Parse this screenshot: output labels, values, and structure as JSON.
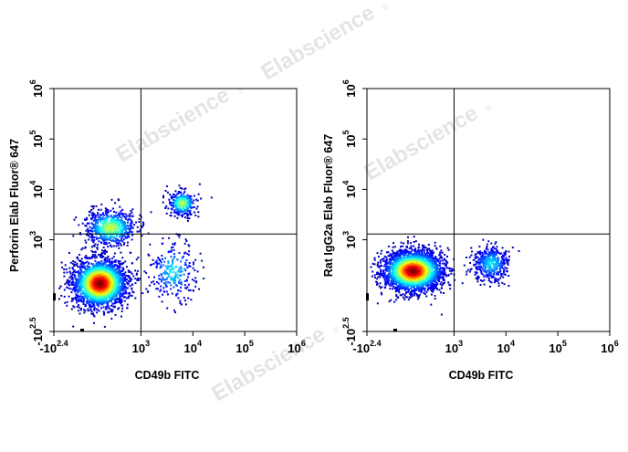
{
  "watermark": "Elabscience",
  "watermark_mark": "®",
  "chart_data": [
    {
      "type": "scatter",
      "subtype": "flow-cytometry-density-dot-plot",
      "title": "",
      "xlabel": "CD49b FITC",
      "ylabel": "Perforin Elab Fluor® 647",
      "x_scale": "biexponential",
      "y_scale": "biexponential",
      "x_ticks": [
        {
          "prefix": "-10",
          "exp": "2.4",
          "value": -251
        },
        {
          "prefix": "10",
          "exp": "3",
          "value": 1000
        },
        {
          "prefix": "10",
          "exp": "4",
          "value": 10000
        },
        {
          "prefix": "10",
          "exp": "5",
          "value": 100000
        },
        {
          "prefix": "10",
          "exp": "6",
          "value": 1000000
        }
      ],
      "y_ticks": [
        {
          "prefix": "-10",
          "exp": "2.5",
          "value": -316
        },
        {
          "prefix": "10",
          "exp": "3",
          "value": 1000
        },
        {
          "prefix": "10",
          "exp": "4",
          "value": 10000
        },
        {
          "prefix": "10",
          "exp": "5",
          "value": 100000
        },
        {
          "prefix": "10",
          "exp": "6",
          "value": 1000000
        }
      ],
      "xlim": [
        -251,
        1000000
      ],
      "ylim": [
        -316,
        1000000
      ],
      "gate": {
        "x": 1000,
        "y": 1300
      },
      "populations": [
        {
          "name": "",
          "x_center": 150,
          "y_center": 130,
          "x_spread": 250,
          "y_spread": 200,
          "count": 2400,
          "peak_density": "high"
        },
        {
          "name": "",
          "x_center": 250,
          "y_center": 1800,
          "x_spread": 350,
          "y_spread": 1500,
          "count": 650,
          "peak_density": "medium"
        },
        {
          "name": "",
          "x_center": 6000,
          "y_center": 5500,
          "x_spread": 3000,
          "y_spread": 2500,
          "count": 330,
          "peak_density": "medium"
        },
        {
          "name": "",
          "x_center": 4000,
          "y_center": 250,
          "x_spread": 5000,
          "y_spread": 500,
          "count": 260,
          "peak_density": "low"
        }
      ],
      "grid": false,
      "legend": "none"
    },
    {
      "type": "scatter",
      "subtype": "flow-cytometry-density-dot-plot",
      "title": "",
      "xlabel": "CD49b FITC",
      "ylabel": "Rat IgG2a Elab Fluor® 647",
      "x_scale": "biexponential",
      "y_scale": "biexponential",
      "x_ticks": [
        {
          "prefix": "-10",
          "exp": "2.4",
          "value": -251
        },
        {
          "prefix": "10",
          "exp": "3",
          "value": 1000
        },
        {
          "prefix": "10",
          "exp": "4",
          "value": 10000
        },
        {
          "prefix": "10",
          "exp": "5",
          "value": 100000
        },
        {
          "prefix": "10",
          "exp": "6",
          "value": 1000000
        }
      ],
      "y_ticks": [
        {
          "prefix": "-10",
          "exp": "2.5",
          "value": -316
        },
        {
          "prefix": "10",
          "exp": "3",
          "value": 1000
        },
        {
          "prefix": "10",
          "exp": "4",
          "value": 10000
        },
        {
          "prefix": "10",
          "exp": "5",
          "value": 100000
        },
        {
          "prefix": "10",
          "exp": "6",
          "value": 1000000
        }
      ],
      "xlim": [
        -251,
        1000000
      ],
      "ylim": [
        -316,
        1000000
      ],
      "gate": {
        "x": 1000,
        "y": 1300
      },
      "populations": [
        {
          "name": "",
          "x_center": 150,
          "y_center": 250,
          "x_spread": 300,
          "y_spread": 250,
          "count": 2600,
          "peak_density": "high"
        },
        {
          "name": "",
          "x_center": 5000,
          "y_center": 350,
          "x_spread": 4000,
          "y_spread": 300,
          "count": 420,
          "peak_density": "low"
        }
      ],
      "grid": false,
      "legend": "none"
    }
  ]
}
